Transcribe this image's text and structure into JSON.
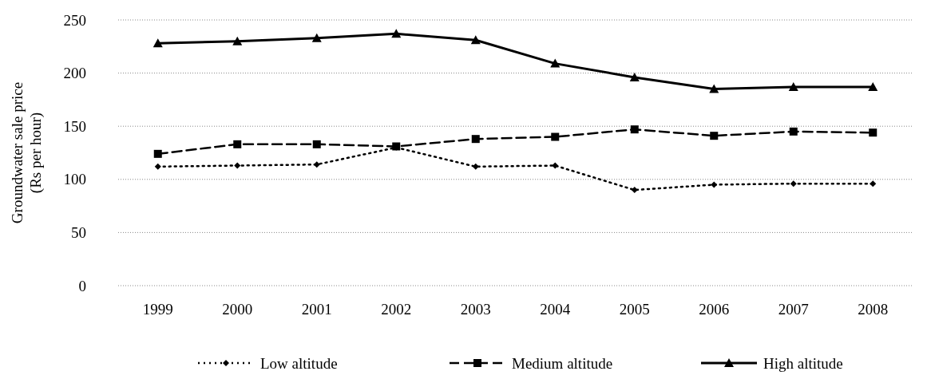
{
  "chart_data": {
    "type": "line",
    "ylabel": "Groundwater sale  price\n(Rs per hour)",
    "categories": [
      "1999",
      "2000",
      "2001",
      "2002",
      "2003",
      "2004",
      "2005",
      "2006",
      "2007",
      "2008"
    ],
    "series": [
      {
        "name": "Low altitude",
        "color": "#000000",
        "line_style": "dotted",
        "marker": "diamond",
        "values": [
          112,
          113,
          114,
          130,
          112,
          113,
          90,
          95,
          96,
          96
        ]
      },
      {
        "name": "Medium altitude",
        "color": "#000000",
        "line_style": "dashed",
        "marker": "square",
        "values": [
          124,
          133,
          133,
          131,
          138,
          140,
          147,
          141,
          145,
          144
        ]
      },
      {
        "name": "High altitude",
        "color": "#000000",
        "line_style": "solid",
        "marker": "triangle",
        "values": [
          228,
          230,
          233,
          237,
          231,
          209,
          196,
          185,
          187,
          187
        ]
      }
    ],
    "ylim": [
      0,
      250
    ],
    "yticks": [
      0,
      50,
      100,
      150,
      200,
      250
    ],
    "grid": "y",
    "legend": "bottom"
  }
}
